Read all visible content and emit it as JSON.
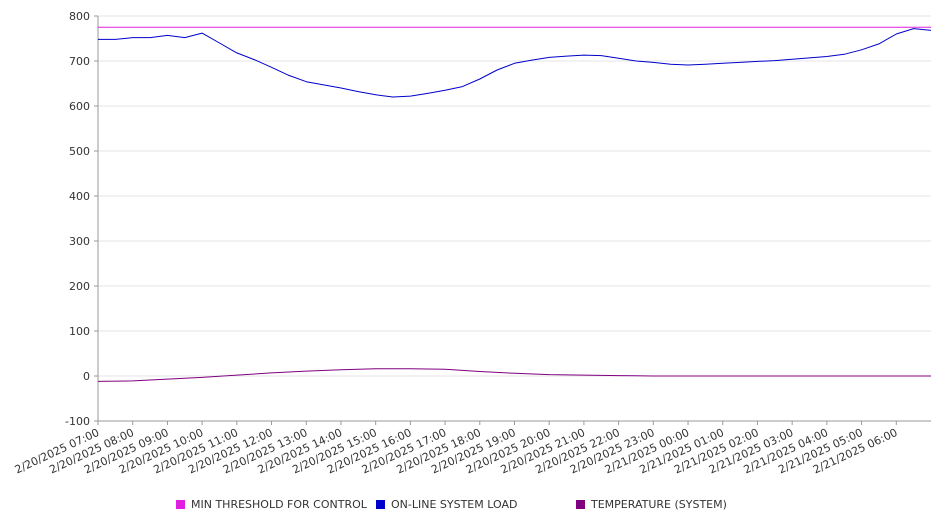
{
  "chart_data": {
    "type": "line",
    "ylim": [
      -100,
      800
    ],
    "y_ticks": [
      -100,
      0,
      100,
      200,
      300,
      400,
      500,
      600,
      700,
      800
    ],
    "x_start_hour": 7,
    "x_end_hour": 31,
    "x_tick_labels": [
      "2/20/2025 07:00",
      "2/20/2025 08:00",
      "2/20/2025 09:00",
      "2/20/2025 10:00",
      "2/20/2025 11:00",
      "2/20/2025 12:00",
      "2/20/2025 13:00",
      "2/20/2025 14:00",
      "2/20/2025 15:00",
      "2/20/2025 16:00",
      "2/20/2025 17:00",
      "2/20/2025 18:00",
      "2/20/2025 19:00",
      "2/20/2025 20:00",
      "2/20/2025 21:00",
      "2/20/2025 22:00",
      "2/20/2025 23:00",
      "2/21/2025 00:00",
      "2/21/2025 01:00",
      "2/21/2025 02:00",
      "2/21/2025 03:00",
      "2/21/2025 04:00",
      "2/21/2025 05:00",
      "2/21/2025 06:00"
    ],
    "grid": true,
    "legend_position": "bottom",
    "series": [
      {
        "name": "MIN THRESHOLD FOR CONTROL",
        "color": "#e020e0",
        "points": [
          [
            7,
            775
          ],
          [
            31,
            775
          ]
        ]
      },
      {
        "name": "ON-LINE SYSTEM LOAD",
        "color": "#0000cc",
        "points": [
          [
            7,
            748
          ],
          [
            7.5,
            748
          ],
          [
            8,
            752
          ],
          [
            8.5,
            752
          ],
          [
            9,
            757
          ],
          [
            9.5,
            752
          ],
          [
            10,
            762
          ],
          [
            10.5,
            740
          ],
          [
            11,
            718
          ],
          [
            11.5,
            703
          ],
          [
            12,
            686
          ],
          [
            12.5,
            668
          ],
          [
            13,
            654
          ],
          [
            13.5,
            647
          ],
          [
            14,
            640
          ],
          [
            14.5,
            632
          ],
          [
            15,
            625
          ],
          [
            15.5,
            620
          ],
          [
            16,
            622
          ],
          [
            16.5,
            628
          ],
          [
            17,
            635
          ],
          [
            17.5,
            643
          ],
          [
            18,
            660
          ],
          [
            18.5,
            680
          ],
          [
            19,
            695
          ],
          [
            19.5,
            702
          ],
          [
            20,
            708
          ],
          [
            20.5,
            711
          ],
          [
            21,
            713
          ],
          [
            21.5,
            712
          ],
          [
            22,
            706
          ],
          [
            22.5,
            700
          ],
          [
            23,
            697
          ],
          [
            23.5,
            693
          ],
          [
            24,
            691
          ],
          [
            24.5,
            693
          ],
          [
            25,
            695
          ],
          [
            25.5,
            697
          ],
          [
            26,
            699
          ],
          [
            26.5,
            701
          ],
          [
            27,
            704
          ],
          [
            27.5,
            707
          ],
          [
            28,
            710
          ],
          [
            28.5,
            715
          ],
          [
            29,
            725
          ],
          [
            29.5,
            738
          ],
          [
            30,
            760
          ],
          [
            30.5,
            772
          ],
          [
            31,
            768
          ]
        ]
      },
      {
        "name": "TEMPERATURE (SYSTEM)",
        "color": "#800080",
        "points": [
          [
            7,
            -12
          ],
          [
            8,
            -11
          ],
          [
            9,
            -7
          ],
          [
            10,
            -3
          ],
          [
            11,
            2
          ],
          [
            12,
            7
          ],
          [
            13,
            11
          ],
          [
            14,
            14
          ],
          [
            15,
            16
          ],
          [
            16,
            16
          ],
          [
            17,
            15
          ],
          [
            18,
            10
          ],
          [
            19,
            6
          ],
          [
            20,
            3
          ],
          [
            21,
            2
          ],
          [
            22,
            1
          ],
          [
            23,
            0
          ],
          [
            24,
            0
          ],
          [
            25,
            0
          ],
          [
            26,
            0
          ],
          [
            27,
            0
          ],
          [
            28,
            0
          ],
          [
            29,
            0
          ],
          [
            30,
            0
          ],
          [
            31,
            0
          ]
        ]
      }
    ]
  }
}
